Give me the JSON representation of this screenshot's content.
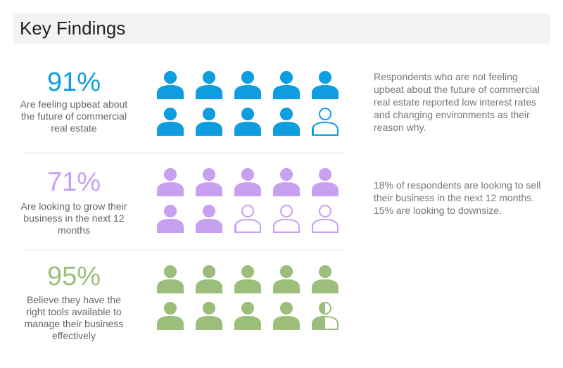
{
  "header": {
    "title": "Key Findings"
  },
  "findings": [
    {
      "value": 91,
      "value_label": "91%",
      "label": "Are feeling upbeat about the future of commercial real estate",
      "color": "#0e9ee0",
      "note": "Respondents who are not feeling upbeat about the future of commercial real estate reported low interest rates and changing environments as their reason why."
    },
    {
      "value": 71,
      "value_label": "71%",
      "label": "Are looking to grow their business in the next 12 months",
      "color": "#c8a0f0",
      "note": "18% of respondents are looking to sell their business in the next 12 months. 15% are looking to downsize."
    },
    {
      "value": 95,
      "value_label": "95%",
      "label": "Believe they have the right tools available to manage their business effectively",
      "color": "#9bbf7a"
    }
  ]
}
